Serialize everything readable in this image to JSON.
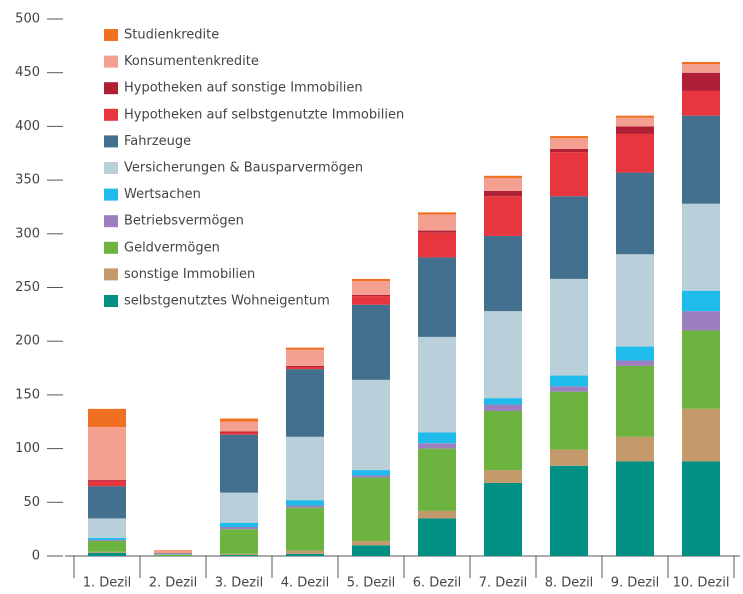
{
  "chart_data": {
    "type": "stacked-bar",
    "categories": [
      "1. Dezil",
      "2. Dezil",
      "3. Dezil",
      "4. Dezil",
      "5. Dezil",
      "6. Dezil",
      "7. Dezil",
      "8. Dezil",
      "9. Dezil",
      "10. Dezil"
    ],
    "series": [
      {
        "name": "selbstgenutztes Wohneigentum",
        "color": "#009084",
        "values": [
          3,
          0,
          1,
          2,
          10,
          35,
          68,
          84,
          88,
          88
        ]
      },
      {
        "name": "sonstige Immobilien",
        "color": "#c49a6c",
        "values": [
          1,
          0,
          1,
          3,
          4,
          7,
          12,
          15,
          23,
          49
        ]
      },
      {
        "name": "Geldvermögen",
        "color": "#6db33f",
        "values": [
          10,
          1,
          23,
          40,
          59,
          58,
          55,
          54,
          66,
          73
        ]
      },
      {
        "name": "Betriebsvermögen",
        "color": "#9b7fbf",
        "values": [
          1,
          0,
          2,
          2,
          2,
          5,
          6,
          5,
          5,
          18
        ]
      },
      {
        "name": "Wertsachen",
        "color": "#1fbbea",
        "values": [
          2,
          0,
          4,
          5,
          5,
          10,
          6,
          10,
          13,
          19
        ]
      },
      {
        "name": "Versicherungen & Bausparvermögen",
        "color": "#b9cfd9",
        "values": [
          18,
          0.5,
          28,
          59,
          84,
          89,
          81,
          90,
          86,
          81
        ]
      },
      {
        "name": "Fahrzeuge",
        "color": "#44708f",
        "values": [
          30,
          1,
          54,
          63,
          70,
          74,
          70,
          77,
          76,
          82
        ]
      },
      {
        "name": "Hypotheken auf selbstgenutzte Immobilien",
        "color": "#e8363f",
        "values": [
          5,
          0,
          2,
          2,
          8,
          23,
          37,
          41,
          36,
          23
        ]
      },
      {
        "name": "Hypotheken auf sonstige Immobilien",
        "color": "#b01f35",
        "values": [
          1,
          0,
          1,
          1,
          1,
          2,
          5,
          3,
          7,
          17
        ]
      },
      {
        "name": "Konsumentenkredite",
        "color": "#f4a091",
        "values": [
          49,
          2.5,
          9,
          15,
          13,
          15,
          12,
          10,
          8,
          8
        ]
      },
      {
        "name": "Studienkredite",
        "color": "#f07022",
        "values": [
          17,
          0.5,
          3,
          2,
          2,
          2,
          2,
          2,
          2,
          2
        ]
      }
    ],
    "ylim": [
      0,
      500
    ],
    "yticks": [
      0,
      50,
      100,
      150,
      200,
      250,
      300,
      350,
      400,
      450,
      500
    ],
    "legend": "top-left"
  }
}
